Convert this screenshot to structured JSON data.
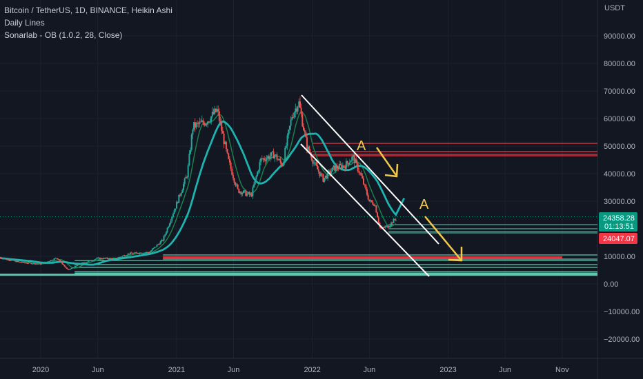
{
  "legend": {
    "line1": "Bitcoin / TetherUS, 1D, BINANCE, Heikin Ashi",
    "line2": "Daily Lines",
    "line3": "Sonarlab - OB (1.0.2, 28, Close)"
  },
  "currency": "USDT",
  "colors": {
    "background": "#131722",
    "up": "#26a69a",
    "down": "#ef5350",
    "ma_fast": "#1b7f4b",
    "ma_slow": "#1fb3b0",
    "trend": "#ffffff",
    "arrow": "#f2c94c",
    "resistance": "#f23645",
    "support": "#5fc9b0",
    "price_tag": "#089981",
    "alt_tag": "#f23645"
  },
  "chart_data": {
    "type": "candlestick",
    "ylim": [
      -25000,
      100000
    ],
    "y_ticks": [
      "90000.00",
      "80000.00",
      "70000.00",
      "60000.00",
      "50000.00",
      "40000.00",
      "30000.00",
      "20000.00",
      "10000.00",
      "0.00",
      "−10000.00",
      "−20000.00"
    ],
    "y_tick_values": [
      90000,
      80000,
      70000,
      60000,
      50000,
      40000,
      30000,
      20000,
      10000,
      0,
      -10000,
      -20000
    ],
    "x_ticks": [
      "2020",
      "Jun",
      "2021",
      "Jun",
      "2022",
      "Jun",
      "2023",
      "Jun",
      "Nov"
    ],
    "x_tick_values": [
      2020.0,
      2020.42,
      2021.0,
      2021.42,
      2022.0,
      2022.42,
      2023.0,
      2023.42,
      2023.84
    ],
    "xlim": [
      2019.7,
      2024.1
    ],
    "price_path": [
      [
        2019.7,
        9500
      ],
      [
        2019.85,
        7800
      ],
      [
        2020.0,
        7200
      ],
      [
        2020.12,
        9500
      ],
      [
        2020.2,
        5000
      ],
      [
        2020.3,
        7500
      ],
      [
        2020.42,
        9300
      ],
      [
        2020.55,
        9200
      ],
      [
        2020.65,
        11000
      ],
      [
        2020.8,
        11500
      ],
      [
        2020.9,
        16000
      ],
      [
        2021.0,
        29000
      ],
      [
        2021.08,
        40000
      ],
      [
        2021.12,
        57000
      ],
      [
        2021.22,
        59000
      ],
      [
        2021.3,
        63000
      ],
      [
        2021.38,
        45000
      ],
      [
        2021.45,
        34000
      ],
      [
        2021.55,
        32000
      ],
      [
        2021.62,
        45000
      ],
      [
        2021.72,
        47000
      ],
      [
        2021.78,
        43000
      ],
      [
        2021.85,
        61000
      ],
      [
        2021.9,
        66000
      ],
      [
        2021.96,
        50000
      ],
      [
        2022.02,
        43000
      ],
      [
        2022.08,
        38000
      ],
      [
        2022.16,
        42000
      ],
      [
        2022.24,
        43000
      ],
      [
        2022.3,
        46000
      ],
      [
        2022.36,
        39000
      ],
      [
        2022.42,
        30000
      ],
      [
        2022.46,
        29000
      ],
      [
        2022.5,
        20000
      ],
      [
        2022.56,
        21000
      ],
      [
        2022.62,
        24000
      ]
    ],
    "current_price": "24358.28",
    "countdown": "01:13:51",
    "other_price": "24047.07",
    "resistance_levels": [
      51000,
      48000,
      47000,
      46500
    ],
    "support_levels": [
      21500,
      20000,
      19000,
      18500
    ],
    "low_levels": [
      10500,
      9000,
      8500,
      7000,
      6000,
      4500,
      3800,
      3300
    ],
    "demand_zone": [
      9000,
      10000
    ]
  },
  "annotations": {
    "label_a1": "A",
    "label_a2": "A"
  }
}
